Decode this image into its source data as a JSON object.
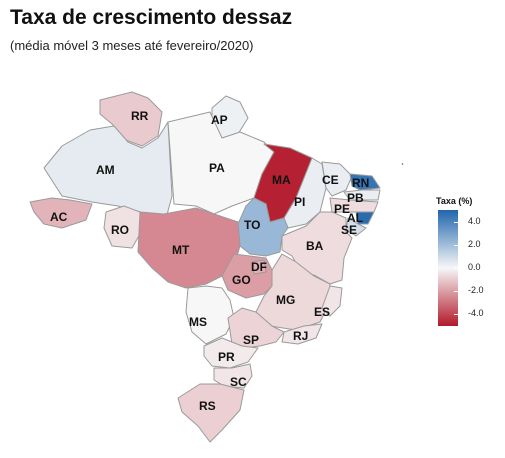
{
  "title": "Taxa de crescimento dessaz",
  "subtitle": "(média móvel 3 meses até fevereiro/2020)",
  "legend": {
    "title": "Taxa (%)",
    "ticks": [
      "4.0",
      "2.0",
      "0.0",
      "-2.0",
      "-4.0"
    ],
    "tick_values": [
      4.0,
      2.0,
      0.0,
      -2.0,
      -4.0
    ],
    "range": [
      -5.0,
      5.0
    ],
    "colors": {
      "negative": "#b2182b",
      "mid": "#f7f7f7",
      "positive": "#2166ac"
    }
  },
  "states": [
    {
      "code": "RR",
      "value": -1.0
    },
    {
      "code": "AP",
      "value": 0.2
    },
    {
      "code": "AM",
      "value": 0.4
    },
    {
      "code": "PA",
      "value": 0.0
    },
    {
      "code": "MA",
      "value": -4.8
    },
    {
      "code": "CE",
      "value": 0.3
    },
    {
      "code": "RN",
      "value": 4.5
    },
    {
      "code": "PB",
      "value": 0.3
    },
    {
      "code": "PE",
      "value": -0.6
    },
    {
      "code": "AL",
      "value": 4.8
    },
    {
      "code": "SE",
      "value": 0.8
    },
    {
      "code": "PI",
      "value": 0.3
    },
    {
      "code": "AC",
      "value": -1.5
    },
    {
      "code": "RO",
      "value": -0.5
    },
    {
      "code": "TO",
      "value": 2.2
    },
    {
      "code": "BA",
      "value": -0.6
    },
    {
      "code": "MT",
      "value": -2.5
    },
    {
      "code": "DF",
      "value": -1.6
    },
    {
      "code": "GO",
      "value": -2.0
    },
    {
      "code": "MG",
      "value": -0.7
    },
    {
      "code": "ES",
      "value": -0.4
    },
    {
      "code": "MS",
      "value": 0.0
    },
    {
      "code": "SP",
      "value": -0.8
    },
    {
      "code": "RJ",
      "value": -0.4
    },
    {
      "code": "PR",
      "value": -0.3
    },
    {
      "code": "SC",
      "value": -0.4
    },
    {
      "code": "RS",
      "value": -0.9
    }
  ]
}
